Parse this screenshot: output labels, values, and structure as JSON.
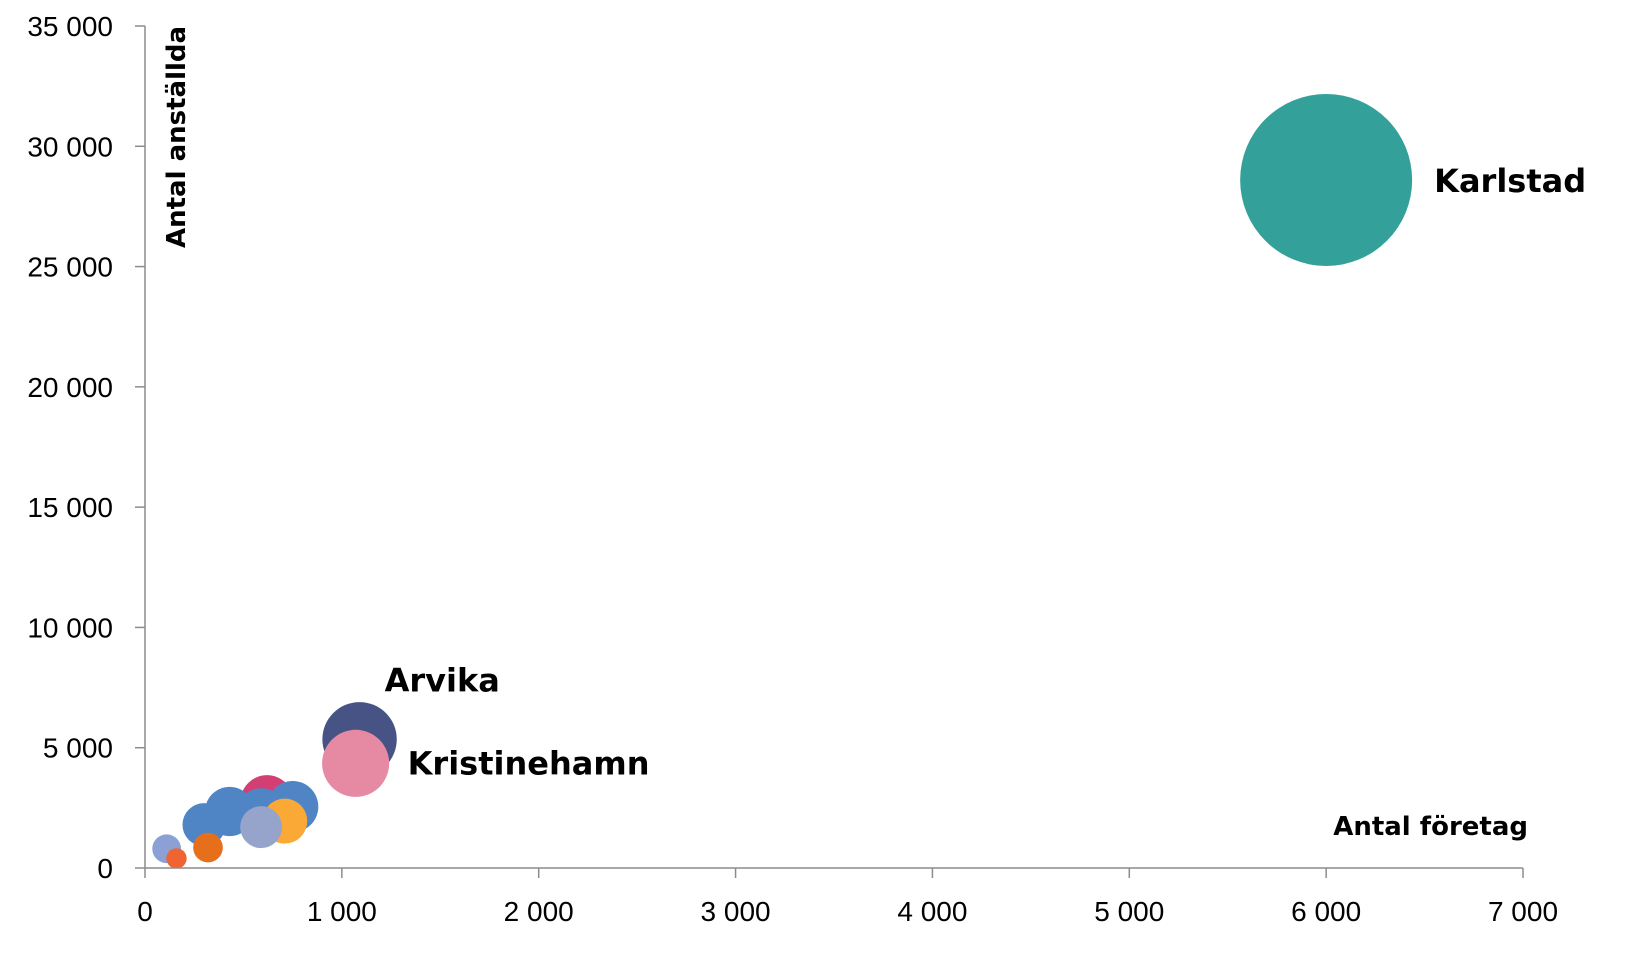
{
  "chart_data": {
    "type": "bubble",
    "title": "",
    "xlabel": "Antal företag",
    "ylabel": "Antal anställda",
    "xlim": [
      0,
      7000
    ],
    "ylim": [
      0,
      35000
    ],
    "x_ticks": [
      0,
      1000,
      2000,
      3000,
      4000,
      5000,
      6000,
      7000
    ],
    "y_ticks": [
      0,
      5000,
      10000,
      15000,
      20000,
      25000,
      30000,
      35000
    ],
    "x_tick_labels": [
      "0",
      "1 000",
      "2 000",
      "3 000",
      "4 000",
      "5 000",
      "6 000",
      "7 000"
    ],
    "y_tick_labels": [
      "0",
      "5 000",
      "10 000",
      "15 000",
      "20 000",
      "25 000",
      "30 000",
      "35 000"
    ],
    "grid": false,
    "legend": "none",
    "points": [
      {
        "label": "Karlstad",
        "x": 6000,
        "y": 28600,
        "size": 28600,
        "color": "#33a19a"
      },
      {
        "label": "Arvika",
        "x": 1090,
        "y": 5350,
        "size": 5350,
        "color": "#465384"
      },
      {
        "label": "Kristinehamn",
        "x": 1070,
        "y": 4350,
        "size": 4350,
        "color": "#e68aa3"
      },
      {
        "label": "",
        "x": 620,
        "y": 2750,
        "size": 2750,
        "color": "#d33f73"
      },
      {
        "label": "",
        "x": 710,
        "y": 1950,
        "size": 1950,
        "color": "#fba936"
      },
      {
        "label": "",
        "x": 750,
        "y": 2550,
        "size": 2550,
        "color": "#4f85c4"
      },
      {
        "label": "",
        "x": 430,
        "y": 2350,
        "size": 2350,
        "color": "#4f85c4"
      },
      {
        "label": "",
        "x": 300,
        "y": 1800,
        "size": 1800,
        "color": "#4f85c4"
      },
      {
        "label": "",
        "x": 590,
        "y": 2300,
        "size": 2300,
        "color": "#4f85c4"
      },
      {
        "label": "",
        "x": 590,
        "y": 1700,
        "size": 1700,
        "color": "#96a3cb"
      },
      {
        "label": "",
        "x": 320,
        "y": 850,
        "size": 850,
        "color": "#e66f1c"
      },
      {
        "label": "",
        "x": 110,
        "y": 800,
        "size": 800,
        "color": "#8ba0d4"
      },
      {
        "label": "",
        "x": 160,
        "y": 400,
        "size": 400,
        "color": "#ef6432"
      }
    ]
  }
}
